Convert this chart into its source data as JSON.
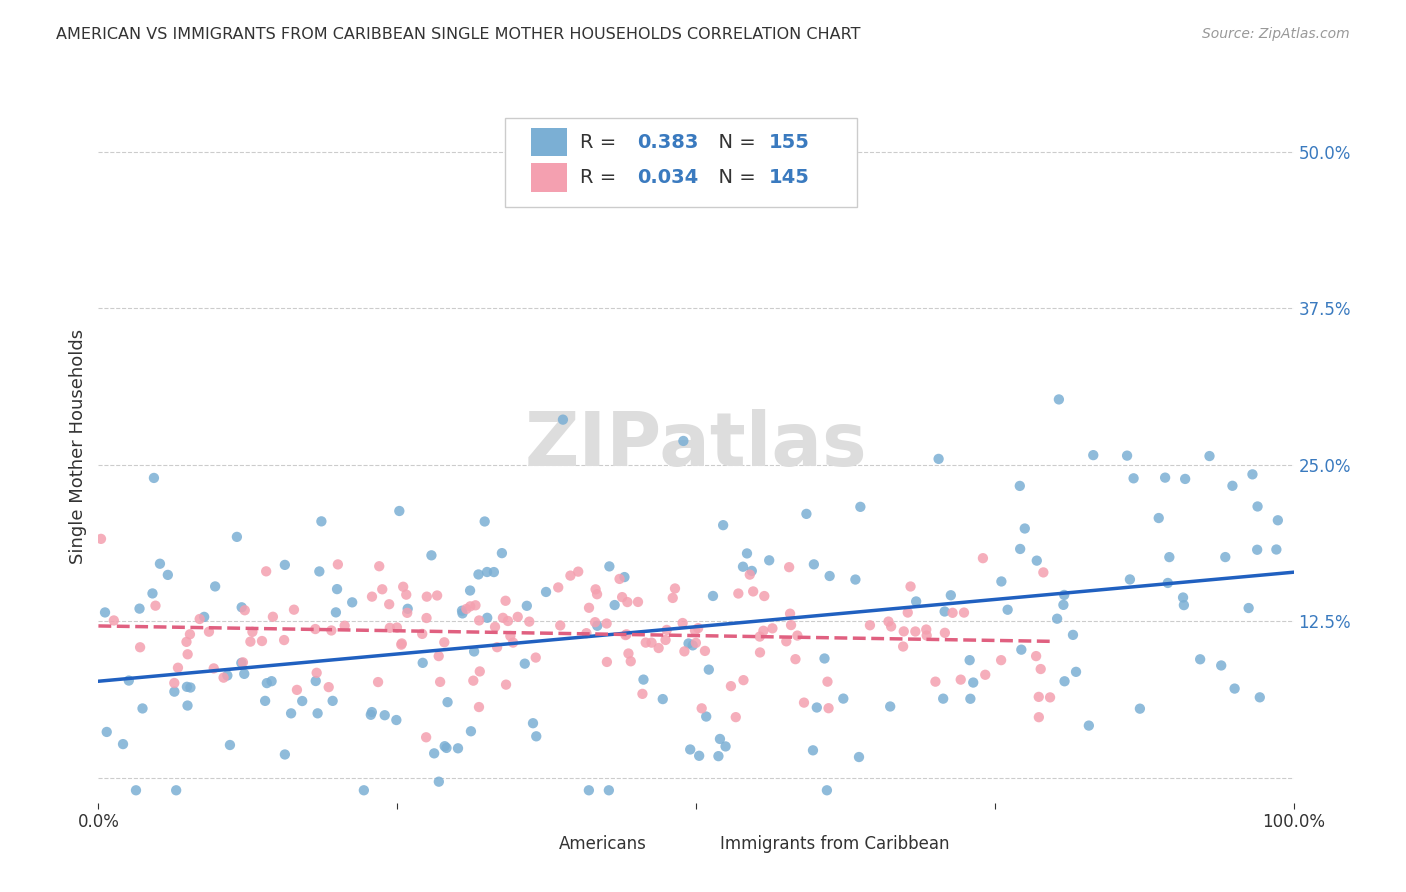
{
  "title": "AMERICAN VS IMMIGRANTS FROM CARIBBEAN SINGLE MOTHER HOUSEHOLDS CORRELATION CHART",
  "source": "Source: ZipAtlas.com",
  "ylabel": "Single Mother Households",
  "xlim": [
    0.0,
    1.0
  ],
  "ylim": [
    -0.02,
    0.55
  ],
  "yticks": [
    0.0,
    0.125,
    0.25,
    0.375,
    0.5
  ],
  "ytick_labels": [
    "",
    "12.5%",
    "25.0%",
    "37.5%",
    "50.0%"
  ],
  "xticks": [
    0.0,
    0.25,
    0.5,
    0.75,
    1.0
  ],
  "xtick_labels": [
    "0.0%",
    "",
    "",
    "",
    "100.0%"
  ],
  "americans_R": 0.383,
  "americans_N": 155,
  "caribbean_R": 0.034,
  "caribbean_N": 145,
  "blue_color": "#7bafd4",
  "pink_color": "#f4a0b0",
  "blue_line_color": "#2060c0",
  "pink_line_color": "#e06080",
  "grid_color": "#cccccc",
  "background_color": "#ffffff",
  "watermark": "ZIPatlas"
}
